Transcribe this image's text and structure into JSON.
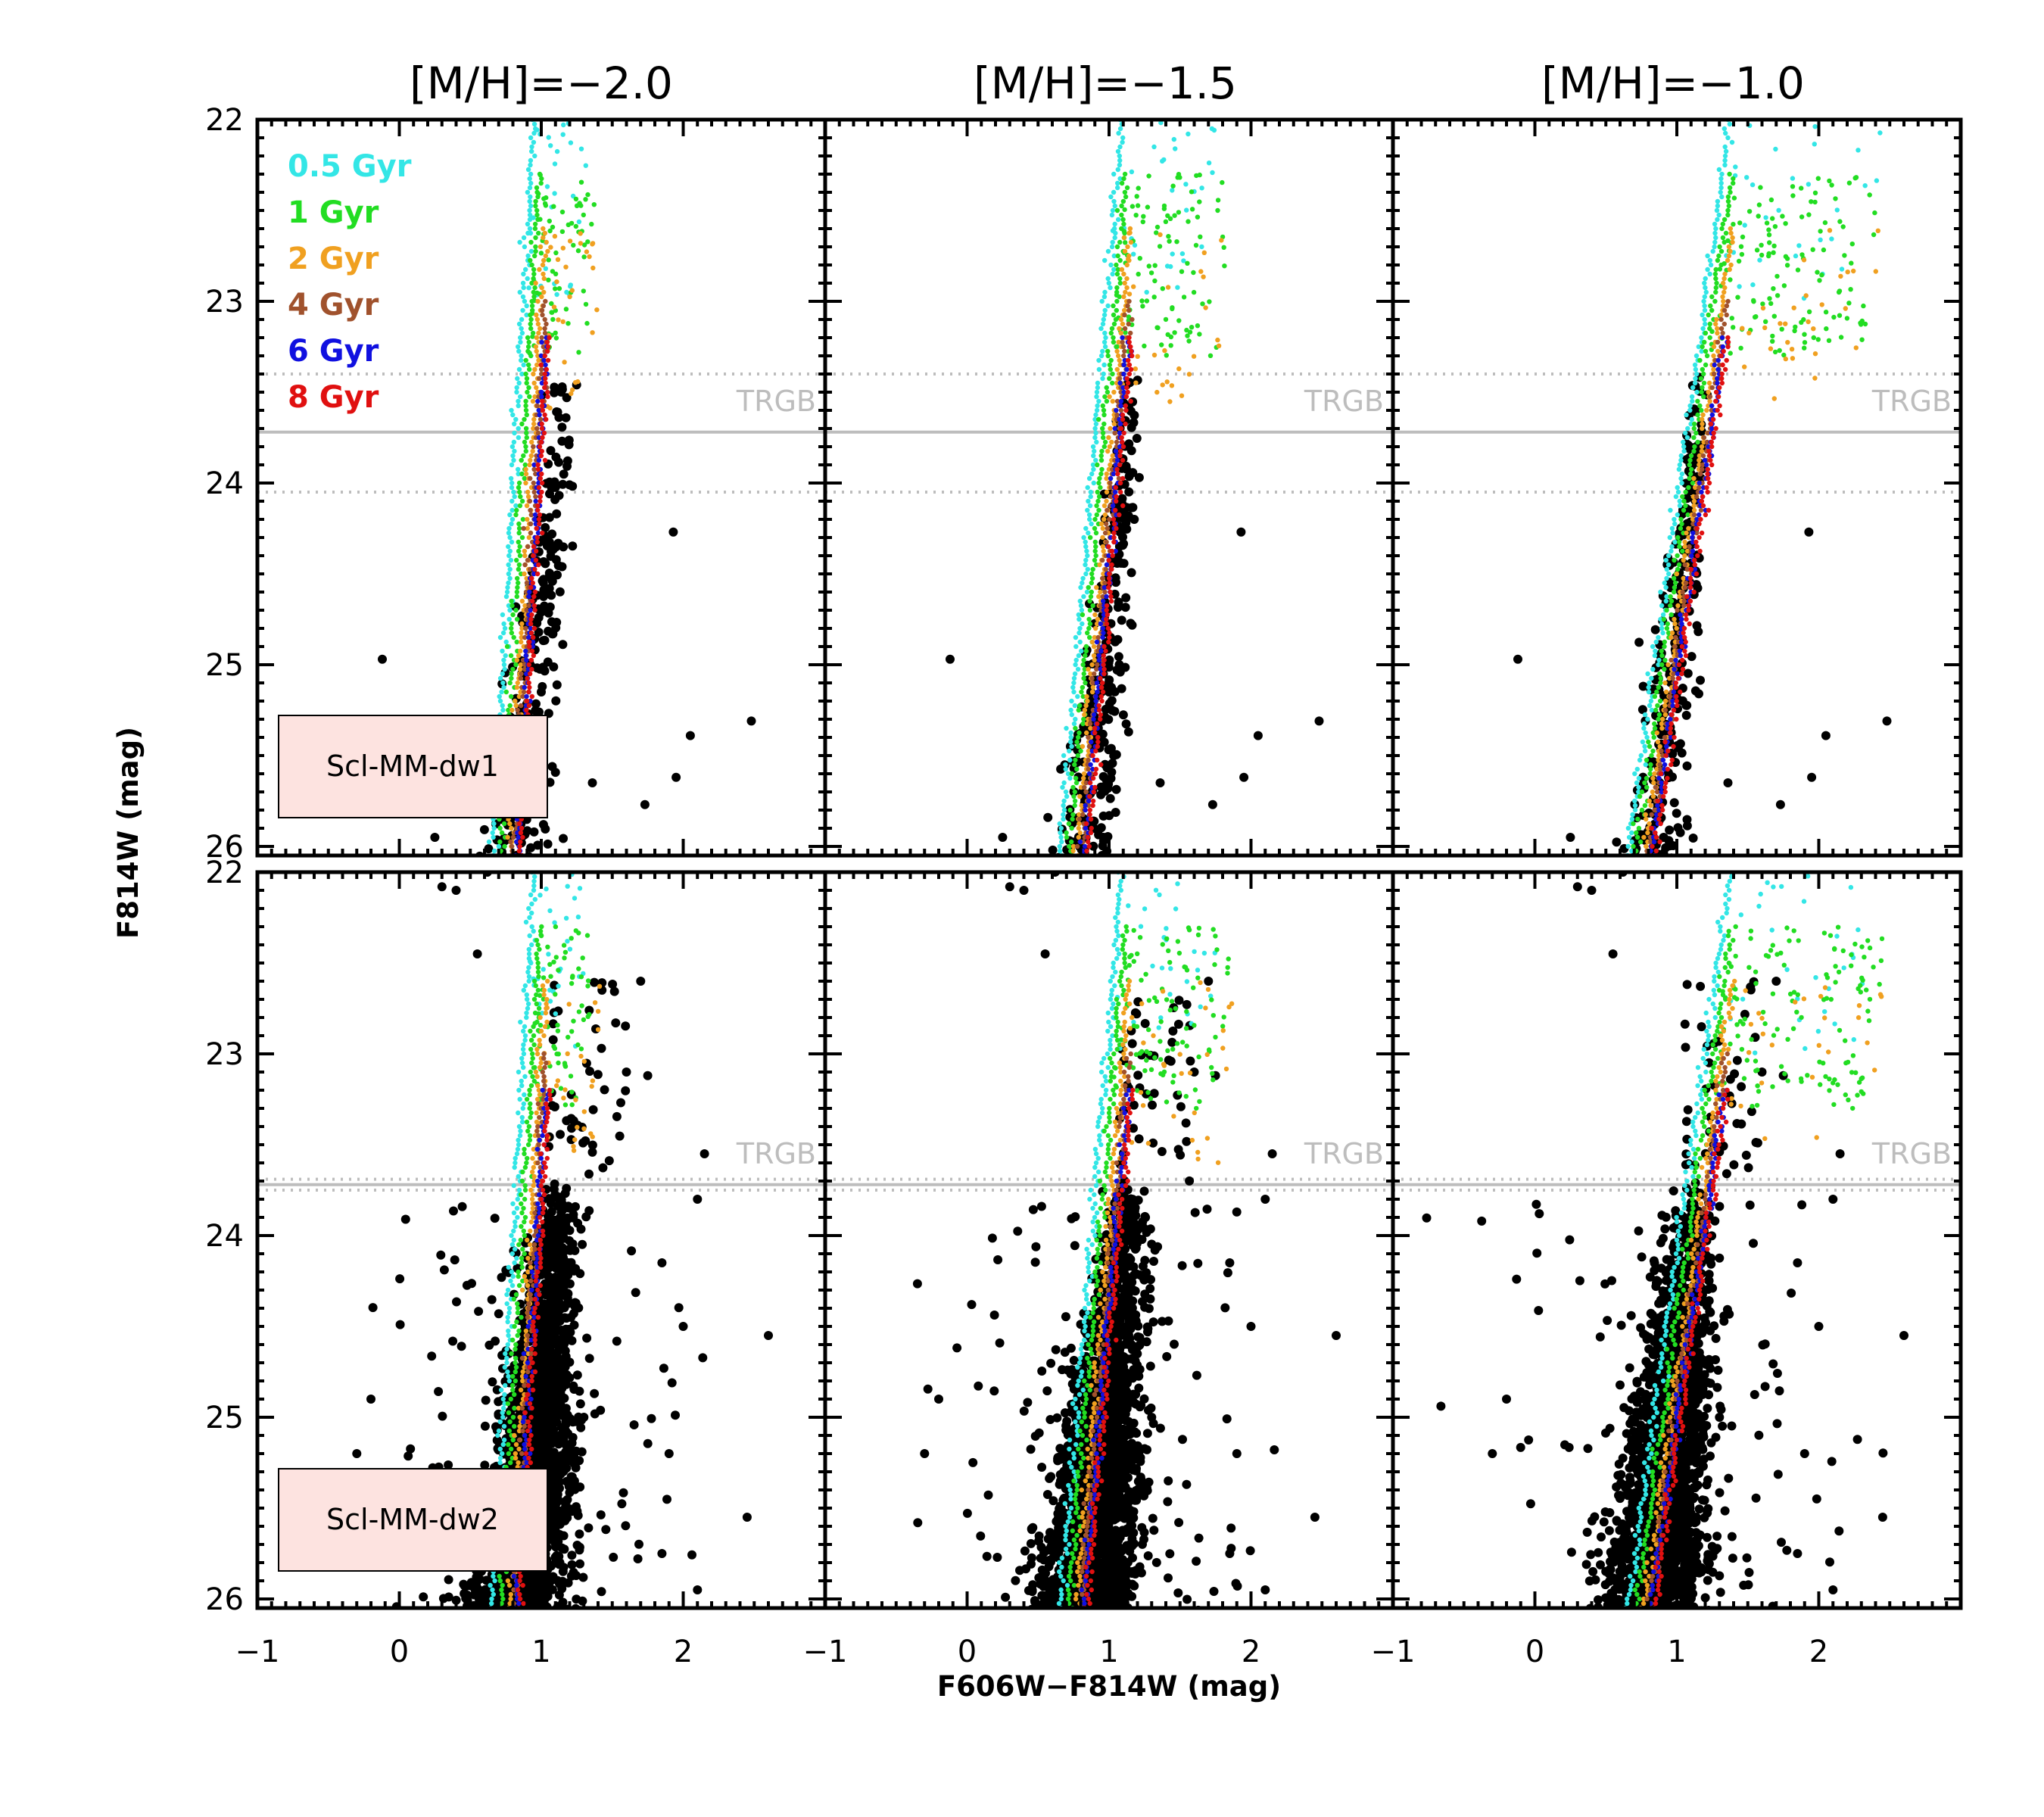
{
  "chart_data": {
    "type": "scatter",
    "column_titles": [
      "[M/H]=−2.0",
      "[M/H]=−1.5",
      "[M/H]=−1.0"
    ],
    "metallicities": [
      -2.0,
      -1.5,
      -1.0
    ],
    "row_labels": [
      "Scl-MM-dw1",
      "Scl-MM-dw2"
    ],
    "xlabel": "F606W−F814W (mag)",
    "ylabel": "F814W (mag)",
    "xlim": [
      -1,
      3
    ],
    "ylim": [
      26.05,
      22.0
    ],
    "xticks": [
      -1,
      0,
      1,
      2
    ],
    "xtick_labels": [
      "−1",
      "0",
      "1",
      "2"
    ],
    "yticks": [
      22,
      23,
      24,
      25,
      26
    ],
    "ytick_labels": [
      "22",
      "23",
      "24",
      "25",
      "26"
    ],
    "trgb": {
      "label": "TRGB",
      "dw1": {
        "mag": 23.72,
        "err_low": 23.4,
        "err_high": 24.05
      },
      "dw2": {
        "mag": 23.72,
        "err_low": 23.69,
        "err_high": 23.75
      }
    },
    "isochrones": [
      {
        "name": "0.5 Gyr",
        "color": "#33e6e6"
      },
      {
        "name": "1 Gyr",
        "color": "#22dd22"
      },
      {
        "name": "2 Gyr",
        "color": "#f0a020"
      },
      {
        "name": "4 Gyr",
        "color": "#a0522d"
      },
      {
        "name": "6 Gyr",
        "color": "#1010e0"
      },
      {
        "name": "8 Gyr",
        "color": "#e01010"
      }
    ],
    "stars": {
      "dw1": {
        "approx_count": 260,
        "rgb_color_at_tip": 1.05,
        "rgb_color_at_26": 0.75,
        "spread": 0.08
      },
      "dw2": {
        "approx_count": 2300,
        "rgb_color_at_tip": 1.05,
        "rgb_color_at_26": 0.75,
        "spread": 0.12,
        "fill_color": "#000000"
      },
      "field_outliers_dw1": [
        [
          -0.12,
          24.97
        ],
        [
          1.93,
          24.27
        ],
        [
          2.48,
          25.31
        ],
        [
          2.05,
          25.39
        ],
        [
          1.95,
          25.62
        ],
        [
          1.73,
          25.77
        ],
        [
          1.36,
          25.65
        ],
        [
          1.0,
          25.15
        ],
        [
          0.25,
          25.95
        ]
      ],
      "field_outliers_dw2": [
        [
          0.3,
          22.08
        ],
        [
          0.4,
          22.1
        ],
        [
          0.62,
          22.0
        ],
        [
          0.55,
          22.45
        ],
        [
          1.7,
          22.6
        ],
        [
          1.75,
          23.12
        ],
        [
          1.6,
          23.1
        ],
        [
          2.15,
          23.55
        ],
        [
          2.1,
          23.8
        ],
        [
          1.85,
          24.15
        ],
        [
          2.0,
          24.5
        ],
        [
          2.6,
          24.55
        ],
        [
          2.45,
          25.55
        ],
        [
          2.1,
          25.95
        ],
        [
          1.9,
          25.2
        ],
        [
          1.3,
          25.0
        ],
        [
          1.85,
          25.75
        ],
        [
          -0.2,
          24.9
        ],
        [
          -0.3,
          25.2
        ]
      ]
    }
  }
}
